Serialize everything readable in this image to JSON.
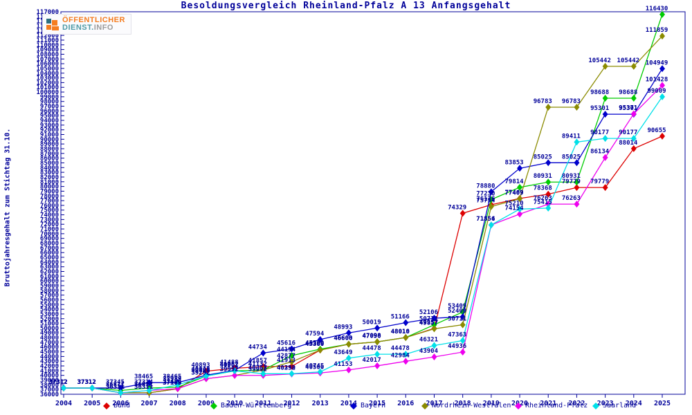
{
  "title": "Besoldungsvergleich Rheinland-Pfalz A 13 Anfangsgehalt",
  "logo": {
    "line1": "ÖFFENTLICHER",
    "dienst": "DIENST.",
    "info": "INFO"
  },
  "chart_data": {
    "type": "line",
    "title": "Besoldungsvergleich Rheinland-Pfalz A 13 Anfangsgehalt",
    "xlabel": "",
    "ylabel": "Bruttojahresgehalt zum Stichtag 31.10.",
    "ylim": [
      36000,
      117000
    ],
    "ytick_step": 1000,
    "grid": false,
    "legend_position": "bottom",
    "point_labels": true,
    "x": [
      2004,
      2005,
      2006,
      2007,
      2008,
      2009,
      2010,
      2011,
      2012,
      2013,
      2014,
      2015,
      2016,
      2017,
      2018,
      2019,
      2020,
      2021,
      2022,
      2023,
      2024,
      2025
    ],
    "series": [
      {
        "name": "Bund",
        "color": "#dd0000",
        "values": [
          37312,
          37312,
          36311,
          36311,
          37165,
          40893,
          41488,
          41857,
          41913,
          45360,
          46600,
          47090,
          48010,
          49957,
          74329,
          76136,
          77469,
          78368,
          79779,
          79779,
          88014,
          90655
        ]
      },
      {
        "name": "Baden-Württemberg",
        "color": "#00cc00",
        "values": [
          37312,
          37312,
          36811,
          37314,
          37486,
          39838,
          40962,
          41132,
          44194,
          45560,
          46608,
          47098,
          48016,
          50711,
          53409,
          77230,
          79814,
          80931,
          80931,
          98688,
          98688,
          116430
        ]
      },
      {
        "name": "Bayern",
        "color": "#0000cc",
        "values": [
          37312,
          37312,
          37345,
          38465,
          38465,
          40048,
          41052,
          44734,
          45616,
          47594,
          48993,
          50019,
          51166,
          52106,
          52409,
          78880,
          83853,
          85025,
          85025,
          95301,
          95301,
          104949
        ]
      },
      {
        "name": "Nordrhein-Westfalen",
        "color": "#8b8b00",
        "values": [
          37312,
          37312,
          36311,
          36311,
          37165,
          39292,
          39992,
          41132,
          42877,
          45360,
          46600,
          47098,
          48010,
          49857,
          50711,
          75754,
          77409,
          96783,
          96783,
          105442,
          105442,
          111859
        ]
      },
      {
        "name": "Rheinland-Pfalz",
        "color": "#ee00ee",
        "values": [
          37312,
          37312,
          36311,
          36811,
          37186,
          39292,
          39992,
          39992,
          40290,
          40500,
          41153,
          42017,
          42984,
          43904,
          44936,
          71856,
          74154,
          76263,
          76263,
          86134,
          95371,
          101428
        ]
      },
      {
        "name": "Saarland",
        "color": "#00e0e8",
        "values": [
          37312,
          37312,
          36311,
          36811,
          37989,
          39838,
          40962,
          40352,
          40352,
          40745,
          43649,
          44478,
          44478,
          46321,
          47363,
          71854,
          75210,
          75415,
          89411,
          90177,
          90177,
          99009
        ]
      }
    ],
    "text_color": "#000099"
  }
}
